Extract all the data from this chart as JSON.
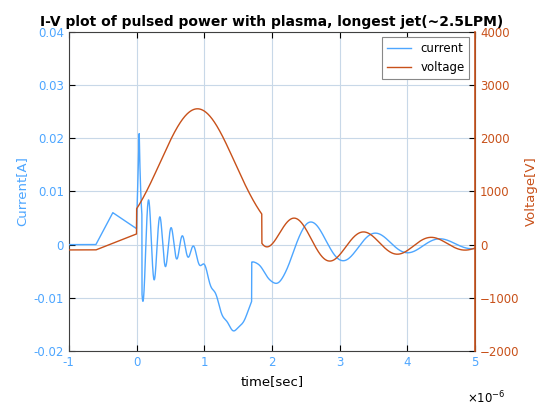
{
  "title": "I-V plot of pulsed power with plasma, longest jet(~2.5LPM)",
  "xlabel": "time[sec]",
  "ylabel_left": "Current[A]",
  "ylabel_right": "Voltage[V]",
  "xlim": [
    -1e-06,
    5e-06
  ],
  "ylim_left": [
    -0.02,
    0.04
  ],
  "ylim_right": [
    -2000,
    4000
  ],
  "xticks": [
    -1e-06,
    0,
    1e-06,
    2e-06,
    3e-06,
    4e-06,
    5e-06
  ],
  "yticks_left": [
    -0.02,
    -0.01,
    0,
    0.01,
    0.02,
    0.03,
    0.04
  ],
  "yticks_right": [
    -2000,
    -1000,
    0,
    1000,
    2000,
    3000,
    4000
  ],
  "current_color": "#4DA6FF",
  "voltage_color": "#C8511A",
  "background_color": "#FFFFFF",
  "grid_color": "#C8D8E8",
  "legend_labels": [
    "current",
    "voltage"
  ],
  "title_fontsize": 10,
  "label_fontsize": 9.5,
  "tick_fontsize": 8.5
}
